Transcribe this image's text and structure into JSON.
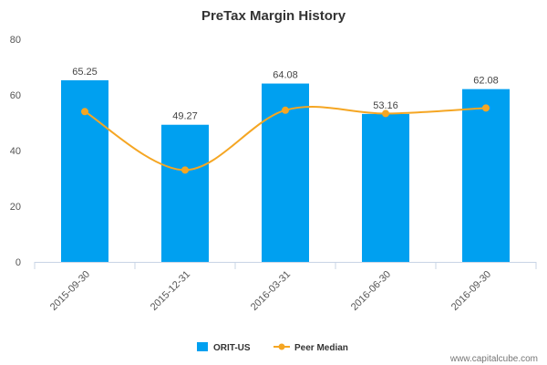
{
  "chart_data": {
    "type": "bar",
    "title": "PreTax Margin History",
    "categories": [
      "2015-09-30",
      "2015-12-31",
      "2016-03-31",
      "2016-06-30",
      "2016-09-30"
    ],
    "series": [
      {
        "name": "ORIT-US",
        "type": "bar",
        "values": [
          65.25,
          49.27,
          64.08,
          53.16,
          62.08
        ],
        "labels": [
          "65.25",
          "49.27",
          "64.08",
          "53.16",
          "62.08"
        ],
        "color": "#00a0f0"
      },
      {
        "name": "Peer Median",
        "type": "line",
        "values": [
          54,
          33,
          54.5,
          53.3,
          55.3
        ],
        "color": "#f5a623"
      }
    ],
    "yticks": [
      "0",
      "20",
      "40",
      "60",
      "80"
    ],
    "ylim": [
      0,
      80
    ],
    "grid": false,
    "legend": "bottom-center"
  },
  "watermark": "www.capitalcube.com"
}
